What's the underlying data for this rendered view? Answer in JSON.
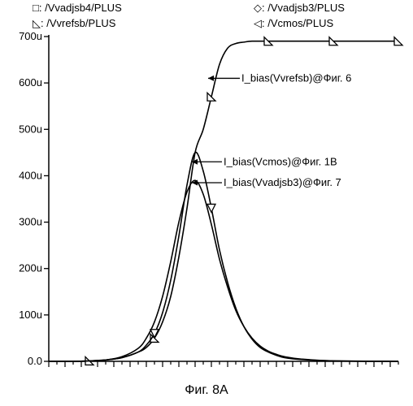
{
  "chart_data": {
    "type": "line",
    "title": "",
    "xlabel": "",
    "ylabel": "",
    "xlim": [
      0,
      43
    ],
    "ylim": [
      0,
      700
    ],
    "y_ticks": [
      {
        "value": 0,
        "label": "0.0"
      },
      {
        "value": 100,
        "label": "100u"
      },
      {
        "value": 200,
        "label": "200u"
      },
      {
        "value": 300,
        "label": "300u"
      },
      {
        "value": 400,
        "label": "400u"
      },
      {
        "value": 500,
        "label": "500u"
      },
      {
        "value": 600,
        "label": "600u"
      },
      {
        "value": 700,
        "label": "700u"
      }
    ],
    "x_minor_ticks": 43,
    "x_major_every": 2,
    "grid": false,
    "legend_position": "top",
    "legend": [
      {
        "marker": "square",
        "label": "□: /Vvadjsb4/PLUS"
      },
      {
        "marker": "diamond",
        "label": "◇: /Vvadjsb3/PLUS"
      },
      {
        "marker": "triangle-right",
        "label": "◺: /Vvrefsb/PLUS"
      },
      {
        "marker": "triangle-down",
        "label": "◁: /Vcmos/PLUS"
      }
    ],
    "series": [
      {
        "marker": "triangle-right",
        "x": [
          0,
          3,
          5,
          7,
          9,
          11,
          12,
          13,
          14,
          15,
          16,
          17,
          18,
          19,
          20,
          21,
          22,
          23,
          24,
          25,
          27,
          30,
          35,
          43
        ],
        "y": [
          0,
          0,
          1,
          3,
          8,
          20,
          30,
          50,
          85,
          140,
          225,
          330,
          450,
          500,
          570,
          640,
          675,
          685,
          688,
          690,
          690,
          690,
          690,
          690
        ],
        "marker_x": [
          5,
          13,
          20,
          27,
          35,
          43
        ]
      },
      {
        "marker": "triangle-down",
        "x": [
          0,
          3,
          5,
          7,
          9,
          11,
          12,
          13,
          14,
          15,
          16,
          17,
          18,
          19,
          20,
          21,
          22,
          23,
          24,
          25,
          26,
          27,
          28,
          29,
          31,
          35,
          43
        ],
        "y": [
          0,
          0,
          1,
          3,
          8,
          20,
          35,
          60,
          105,
          175,
          270,
          380,
          450,
          410,
          330,
          240,
          170,
          115,
          75,
          48,
          30,
          20,
          13,
          8,
          4,
          1,
          0
        ],
        "marker_x": [
          13,
          20
        ]
      },
      {
        "marker": "diamond",
        "x": [
          0,
          3,
          5,
          7,
          9,
          11,
          12,
          13,
          14,
          15,
          16,
          17,
          18,
          19,
          20,
          21,
          22,
          23,
          24,
          25,
          26,
          27,
          28,
          29,
          31,
          35,
          43
        ],
        "y": [
          0,
          0,
          1,
          3,
          10,
          28,
          50,
          85,
          140,
          215,
          300,
          365,
          390,
          360,
          295,
          220,
          160,
          110,
          75,
          50,
          33,
          22,
          15,
          10,
          5,
          1,
          0
        ],
        "marker_x": []
      }
    ],
    "annotations": [
      {
        "text": "I_bias(Vvrefsb)@Фиг. 6",
        "x": 21.5,
        "y": 610
      },
      {
        "text": "I_bias(Vcmos)@Фиг. 1B",
        "x": 19.3,
        "y": 430
      },
      {
        "text": "I_bias(Vvadjsb3)@Фиг. 7",
        "x": 19.3,
        "y": 385
      }
    ]
  },
  "caption": "Фиг. 8A"
}
